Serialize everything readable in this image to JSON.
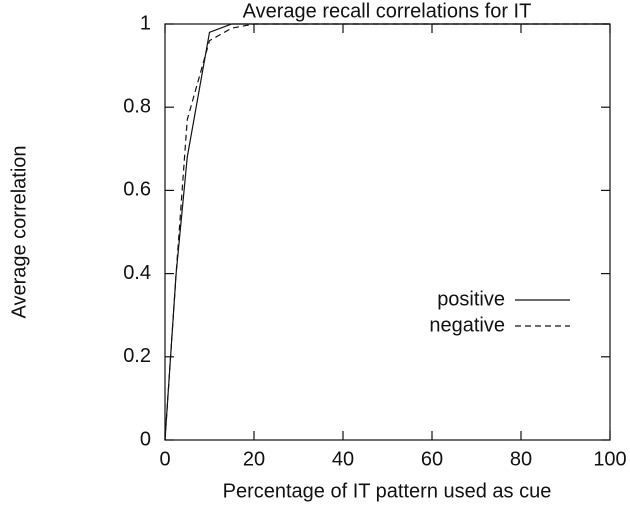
{
  "chart_data": {
    "type": "line",
    "title": "Average recall correlations for IT",
    "x_label": "Percentage of IT pattern used as cue",
    "y_label": "Average correlation",
    "x": [
      0,
      2.5,
      5,
      10,
      15,
      20,
      40,
      60,
      80,
      100
    ],
    "series": [
      {
        "name": "positive",
        "color": "#111111",
        "dash": "solid",
        "values": [
          0,
          0.4,
          0.68,
          0.98,
          1,
          1,
          1,
          1,
          1,
          1
        ]
      },
      {
        "name": "negative",
        "color": "#111111",
        "dash": "dashed",
        "values": [
          0,
          0.4,
          0.77,
          0.96,
          0.99,
          1,
          1,
          1,
          1,
          1
        ]
      }
    ],
    "xlim": [
      0,
      100
    ],
    "xticks": [
      0,
      20,
      40,
      60,
      80,
      100
    ],
    "ylim": [
      0,
      1
    ],
    "yticks": [
      0,
      0.2,
      0.4,
      0.6,
      0.8,
      1
    ],
    "legend": "right",
    "grid": false
  }
}
